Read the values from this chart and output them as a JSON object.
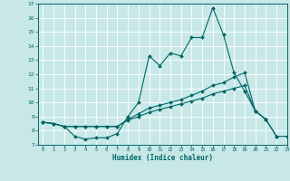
{
  "xlabel": "Humidex (Indice chaleur)",
  "ylabel": "",
  "xlim": [
    -0.5,
    23
  ],
  "ylim": [
    7,
    17
  ],
  "yticks": [
    7,
    8,
    9,
    10,
    11,
    12,
    13,
    14,
    15,
    16,
    17
  ],
  "xticks": [
    0,
    1,
    2,
    3,
    4,
    5,
    6,
    7,
    8,
    9,
    10,
    11,
    12,
    13,
    14,
    15,
    16,
    17,
    18,
    19,
    20,
    21,
    22,
    23
  ],
  "line_color": "#006666",
  "bg_color": "#c8e8e8",
  "grid_color": "#ffffff",
  "series": [
    {
      "x": [
        0,
        1,
        2,
        3,
        4,
        5,
        6,
        7,
        8,
        9,
        10,
        11,
        12,
        13,
        14,
        15,
        16,
        17,
        18,
        19,
        20,
        21
      ],
      "y": [
        8.6,
        8.5,
        8.3,
        7.6,
        7.4,
        7.5,
        7.5,
        7.8,
        9.0,
        10.0,
        13.3,
        12.6,
        13.5,
        13.3,
        14.6,
        14.6,
        16.7,
        14.8,
        12.1,
        10.8,
        9.4,
        8.8
      ]
    },
    {
      "x": [
        0,
        1,
        2,
        3,
        4,
        5,
        6,
        7,
        8,
        9,
        10,
        11,
        12,
        13,
        14,
        15,
        16,
        17,
        18,
        19,
        20,
        21,
        22
      ],
      "y": [
        8.6,
        8.5,
        8.3,
        8.3,
        8.3,
        8.3,
        8.3,
        8.3,
        8.8,
        9.2,
        9.6,
        9.8,
        10.0,
        10.2,
        10.5,
        10.8,
        11.2,
        11.4,
        11.8,
        12.1,
        9.4,
        8.8,
        7.6
      ]
    },
    {
      "x": [
        0,
        1,
        2,
        3,
        4,
        5,
        6,
        7,
        8,
        9,
        10,
        11,
        12,
        13,
        14,
        15,
        16,
        17,
        18,
        19,
        20,
        21,
        22,
        23
      ],
      "y": [
        8.6,
        8.5,
        8.3,
        8.3,
        8.3,
        8.3,
        8.3,
        8.3,
        8.75,
        9.0,
        9.3,
        9.5,
        9.7,
        9.9,
        10.1,
        10.3,
        10.6,
        10.8,
        11.0,
        11.2,
        9.4,
        8.8,
        7.6,
        7.6
      ]
    }
  ]
}
